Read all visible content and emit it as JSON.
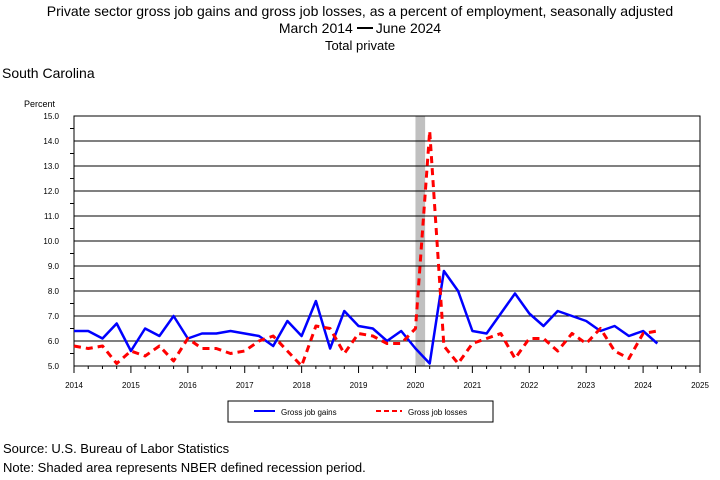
{
  "header": {
    "title_line1": "Private sector gross job gains and gross job losses, as a percent of employment, seasonally adjusted",
    "title_line2_start": "March 2014",
    "title_line2_end": "June 2024",
    "subtitle": "Total private"
  },
  "region": "South Carolina",
  "footer": {
    "source": "Source: U.S. Bureau of Labor Statistics",
    "note": "Note: Shaded area represents NBER defined recession period."
  },
  "colors": {
    "gains": "#0000ff",
    "losses": "#ff0000",
    "recession": "#c0c0c0"
  },
  "chart_data": {
    "type": "line",
    "ylabel": "Percent",
    "ylim": [
      5.0,
      15.0
    ],
    "yticks": [
      "5.0",
      "6.0",
      "7.0",
      "8.0",
      "9.0",
      "10.0",
      "11.0",
      "12.0",
      "13.0",
      "14.0",
      "15.0"
    ],
    "xlim": [
      2014,
      2025
    ],
    "xticks": [
      "2014",
      "2015",
      "2016",
      "2017",
      "2018",
      "2019",
      "2020",
      "2021",
      "2022",
      "2023",
      "2024",
      "2025"
    ],
    "grid": "horizontal",
    "legend_position": "bottom",
    "recession": {
      "start": 2020.0,
      "end": 2020.17
    },
    "x": [
      2014.0,
      2014.25,
      2014.5,
      2014.75,
      2015.0,
      2015.25,
      2015.5,
      2015.75,
      2016.0,
      2016.25,
      2016.5,
      2016.75,
      2017.0,
      2017.25,
      2017.5,
      2017.75,
      2018.0,
      2018.25,
      2018.5,
      2018.75,
      2019.0,
      2019.25,
      2019.5,
      2019.75,
      2020.0,
      2020.25,
      2020.5,
      2020.75,
      2021.0,
      2021.25,
      2021.5,
      2021.75,
      2022.0,
      2022.25,
      2022.5,
      2022.75,
      2023.0,
      2023.25,
      2023.5,
      2023.75,
      2024.0,
      2024.25
    ],
    "series": [
      {
        "name": "Gross job gains",
        "style": "solid",
        "values": [
          6.4,
          6.4,
          6.1,
          6.7,
          5.6,
          6.5,
          6.2,
          7.0,
          6.1,
          6.3,
          6.3,
          6.4,
          6.3,
          6.2,
          5.8,
          6.8,
          6.2,
          7.6,
          5.7,
          7.2,
          6.6,
          6.5,
          6.0,
          6.4,
          5.7,
          5.1,
          8.8,
          8.0,
          6.4,
          6.3,
          7.1,
          7.9,
          7.1,
          6.6,
          7.2,
          7.0,
          6.8,
          6.4,
          6.6,
          6.2,
          6.4,
          5.9
        ]
      },
      {
        "name": "Gross job losses",
        "style": "dashed",
        "values": [
          5.8,
          5.7,
          5.8,
          5.1,
          5.6,
          5.4,
          5.8,
          5.2,
          6.1,
          5.7,
          5.7,
          5.5,
          5.6,
          6.0,
          6.2,
          5.6,
          5.0,
          6.6,
          6.5,
          5.5,
          6.3,
          6.2,
          5.9,
          5.9,
          6.5,
          14.4,
          5.8,
          5.1,
          5.9,
          6.1,
          6.3,
          5.3,
          6.1,
          6.1,
          5.6,
          6.3,
          5.9,
          6.5,
          5.6,
          5.3,
          6.3,
          6.4
        ]
      }
    ]
  }
}
